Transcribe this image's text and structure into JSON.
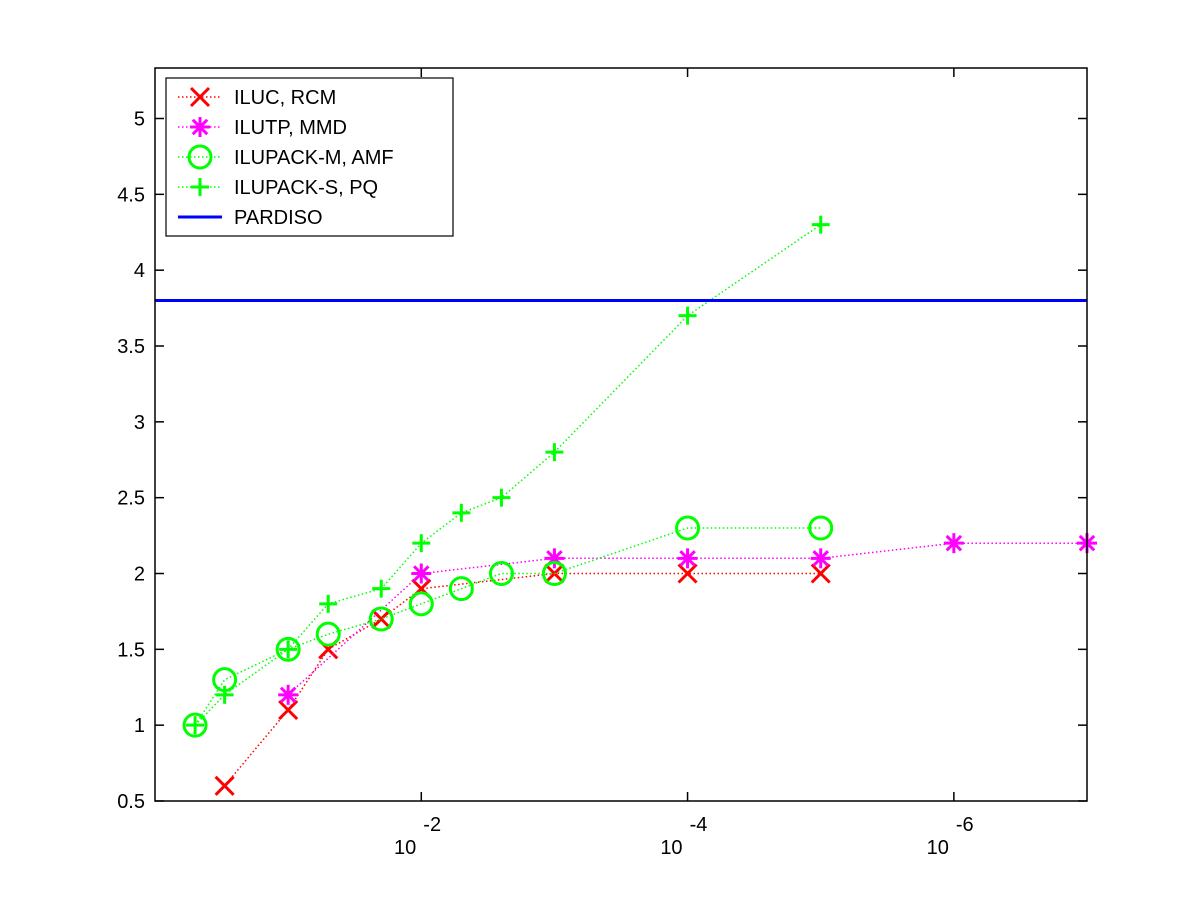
{
  "chart_data": {
    "type": "line",
    "title": "",
    "xlabel": "",
    "ylabel": "",
    "x_scale": "log-reversed",
    "xlim": [
      1,
      1e-07
    ],
    "ylim": [
      0.5,
      5.333
    ],
    "y_ticks": [
      "0.5",
      "1",
      "1.5",
      "2",
      "2.5",
      "3",
      "3.5",
      "4",
      "4.5",
      "5"
    ],
    "y_tick_values": [
      0.5,
      1,
      1.5,
      2,
      2.5,
      3,
      3.5,
      4,
      4.5,
      5
    ],
    "x_ticks": [
      {
        "value": 0.01,
        "base": "10",
        "exp": "-2"
      },
      {
        "value": 0.0001,
        "base": "10",
        "exp": "-4"
      },
      {
        "value": 1e-06,
        "base": "10",
        "exp": "-6"
      }
    ],
    "grid": false,
    "legend_position": "top-left",
    "series": [
      {
        "name": "ILUC, RCM",
        "color": "#ff0000",
        "marker": "x",
        "line_style": "dotted",
        "x": [
          0.3,
          0.1,
          0.05,
          0.02,
          0.01,
          0.001,
          0.0001,
          1e-05
        ],
        "y": [
          0.6,
          1.1,
          1.5,
          1.7,
          1.9,
          2.0,
          2.0,
          2.0
        ]
      },
      {
        "name": "ILUTP, MMD",
        "color": "#ff00ff",
        "marker": "star",
        "line_style": "dotted",
        "x": [
          0.1,
          0.01,
          0.001,
          0.0001,
          1e-05,
          1e-06,
          1e-07
        ],
        "y": [
          1.2,
          2.0,
          2.1,
          2.1,
          2.1,
          2.2,
          2.2
        ]
      },
      {
        "name": "ILUPACK-M, AMF",
        "color": "#00ff00",
        "marker": "circle",
        "line_style": "dotted",
        "x": [
          0.5,
          0.3,
          0.1,
          0.05,
          0.02,
          0.01,
          0.005,
          0.0025,
          0.001,
          0.0001,
          1e-05
        ],
        "y": [
          1.0,
          1.3,
          1.5,
          1.6,
          1.7,
          1.8,
          1.9,
          2.0,
          2.0,
          2.3,
          2.3
        ]
      },
      {
        "name": "ILUPACK-S, PQ",
        "color": "#00ff00",
        "marker": "plus",
        "line_style": "dotted",
        "x": [
          0.5,
          0.3,
          0.1,
          0.05,
          0.02,
          0.01,
          0.005,
          0.0025,
          0.001,
          0.0001,
          1e-05
        ],
        "y": [
          1.0,
          1.2,
          1.5,
          1.8,
          1.9,
          2.2,
          2.4,
          2.5,
          2.8,
          3.7,
          4.3
        ]
      },
      {
        "name": "PARDISO",
        "color": "#0000ff",
        "marker": "none",
        "line_style": "solid",
        "x": [
          1,
          1e-07
        ],
        "y": [
          3.8,
          3.8
        ]
      }
    ]
  }
}
